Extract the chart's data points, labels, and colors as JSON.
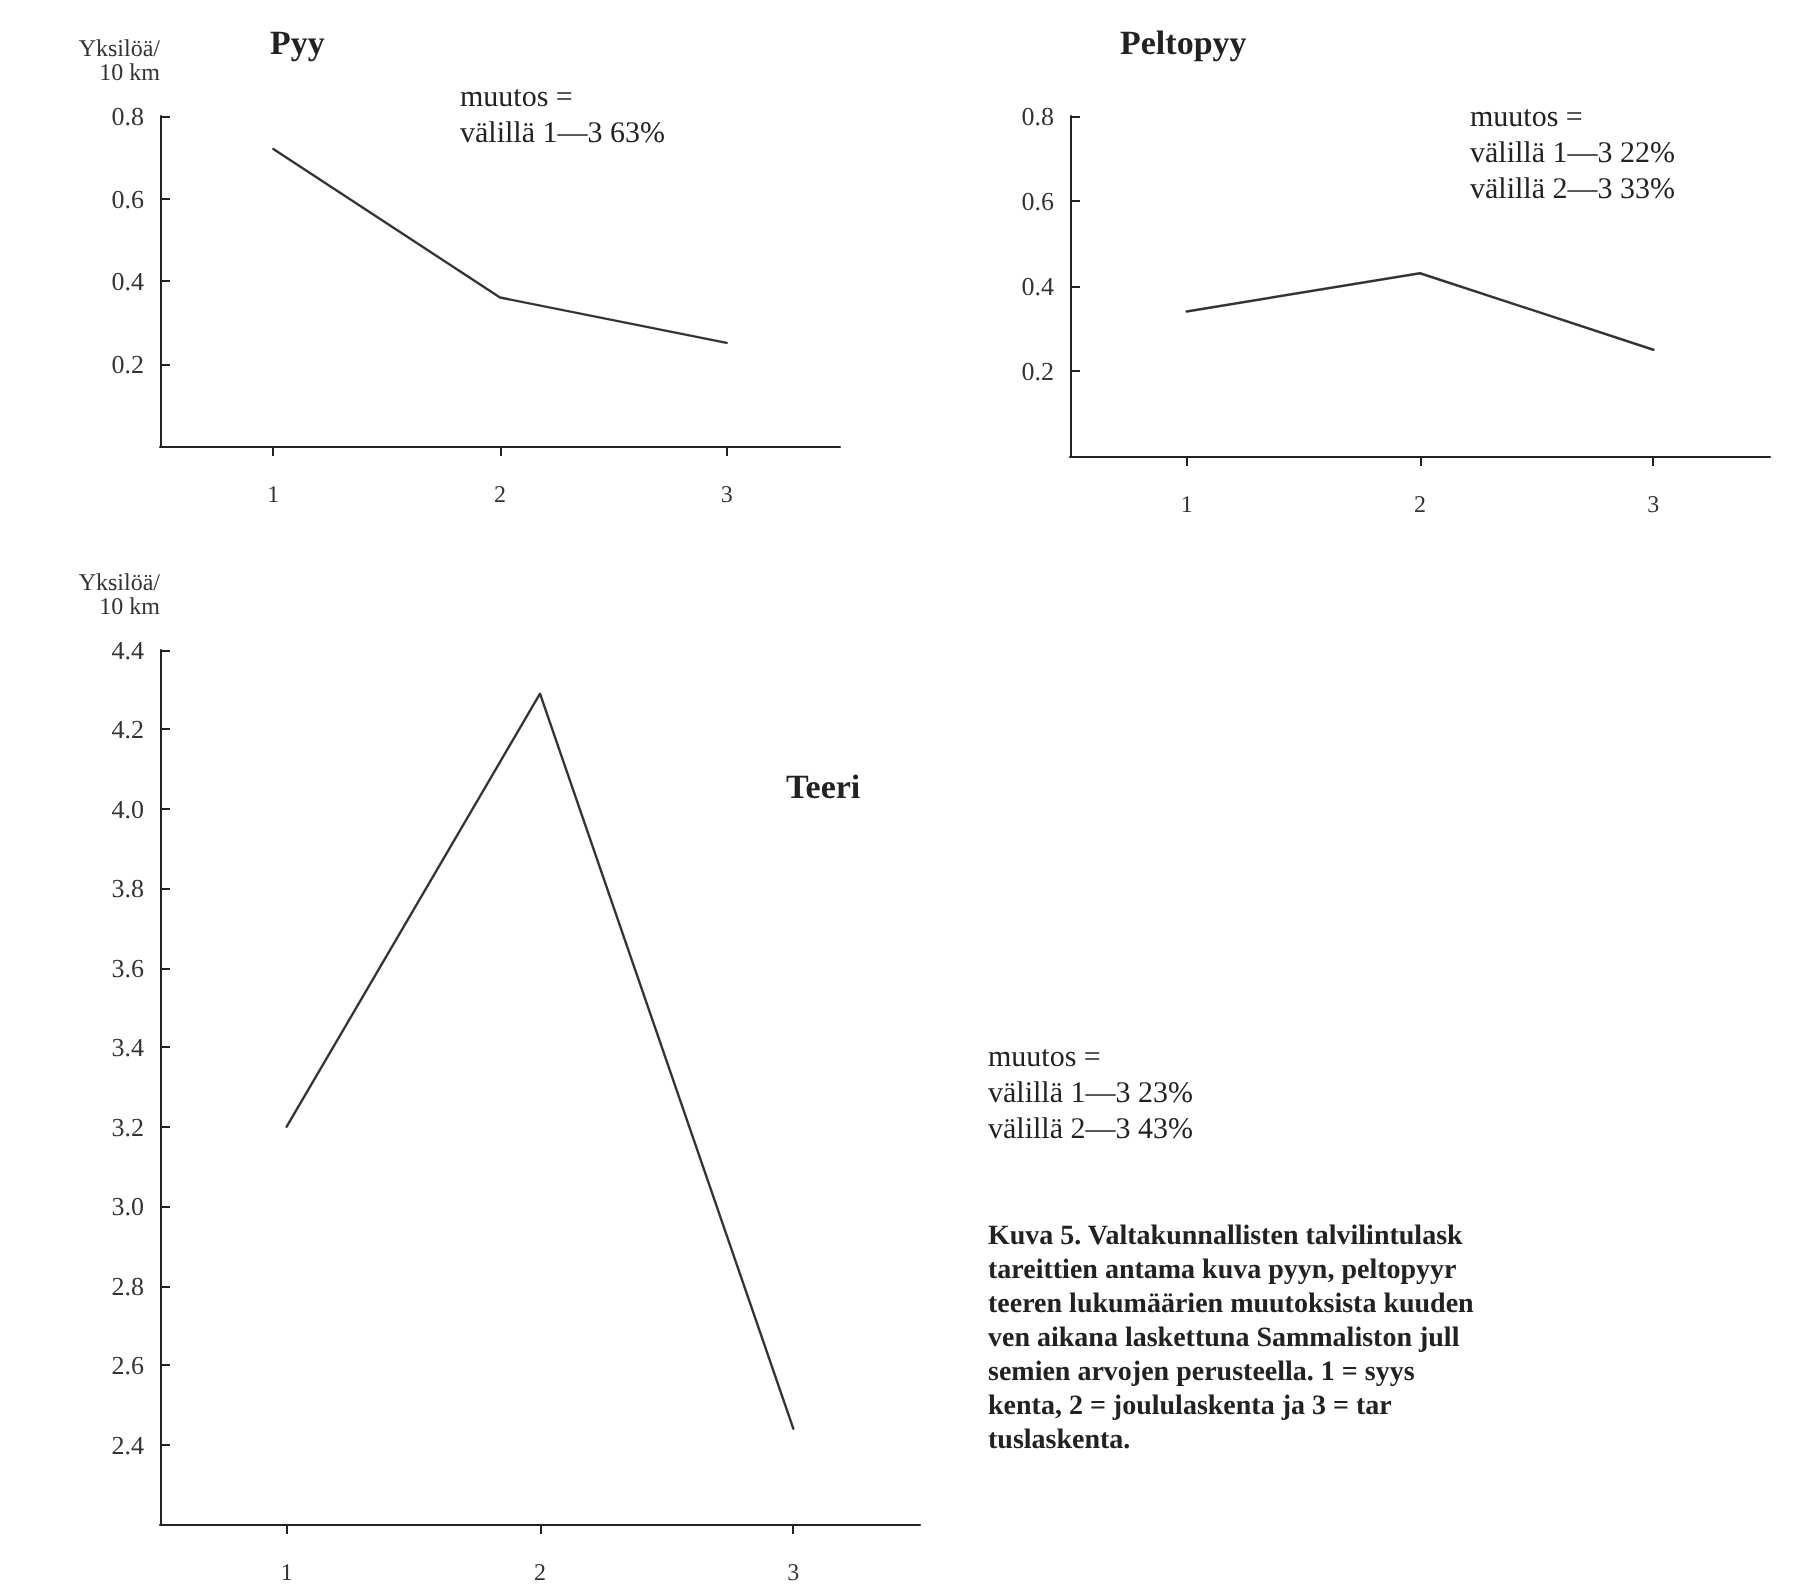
{
  "chart_data": [
    {
      "type": "line",
      "title": "Pyy",
      "ylabel": "Yksilöä/\n10 km",
      "categories": [
        "1",
        "2",
        "3"
      ],
      "values": [
        0.72,
        0.36,
        0.25
      ],
      "color": "#333333",
      "ylim": [
        0,
        0.8
      ],
      "yticks": [
        0.2,
        0.4,
        0.6,
        0.8
      ],
      "grid": false,
      "marker": "none",
      "line_style": "solid",
      "annotations": [
        "muutos =\nvälillä 1—3 63%"
      ]
    },
    {
      "type": "line",
      "title": "Peltopyy",
      "categories": [
        "1",
        "2",
        "3"
      ],
      "values": [
        0.34,
        0.43,
        0.25
      ],
      "color": "#333333",
      "ylim": [
        0,
        0.8
      ],
      "yticks": [
        0.2,
        0.4,
        0.6,
        0.8
      ],
      "grid": false,
      "marker": "none",
      "line_style": "solid",
      "annotations": [
        "muutos =\nvälillä 1—3 22%\nvälillä 2—3 33%"
      ]
    },
    {
      "type": "line",
      "title": "Teeri",
      "ylabel": "Yksilöä/\n10 km",
      "categories": [
        "1",
        "2",
        "3"
      ],
      "values": [
        3.2,
        4.29,
        2.44
      ],
      "color": "#333333",
      "ylim": [
        2.2,
        4.4
      ],
      "yticks": [
        2.4,
        2.6,
        2.8,
        {
          "value": 3,
          "label": "3.0"
        },
        3.2,
        3.4,
        3.6,
        3.8,
        {
          "value": 4,
          "label": "4.0"
        },
        4.2,
        4.4
      ],
      "grid": false,
      "marker": "none",
      "line_style": "solid",
      "annotations": [
        "muutos =\nvälillä 1—3 23%\nvälillä 2—3 43%",
        "Kuva 5. Valtakunnallisten talvilintulask\ntareittien antama kuva pyyn, peltopyyr\nteeren lukumäärien muutoksista kuuden\nven aikana laskettuna Sammaliston jull\nsemien arvojen perusteella. 1 = syys\nkenta, 2 = joululaskenta ja 3 = tar\ntuslaskenta."
      ]
    }
  ]
}
